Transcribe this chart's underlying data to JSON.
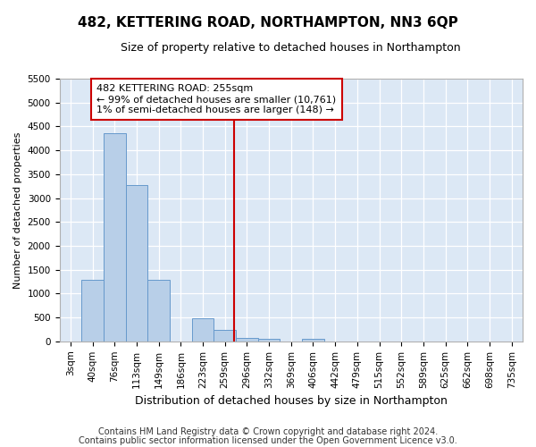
{
  "title": "482, KETTERING ROAD, NORTHAMPTON, NN3 6QP",
  "subtitle": "Size of property relative to detached houses in Northampton",
  "xlabel": "Distribution of detached houses by size in Northampton",
  "ylabel": "Number of detached properties",
  "footnote1": "Contains HM Land Registry data © Crown copyright and database right 2024.",
  "footnote2": "Contains public sector information licensed under the Open Government Licence v3.0.",
  "annotation_title": "482 KETTERING ROAD: 255sqm",
  "annotation_line1": "← 99% of detached houses are smaller (10,761)",
  "annotation_line2": "1% of semi-detached houses are larger (148) →",
  "bar_labels": [
    "3sqm",
    "40sqm",
    "76sqm",
    "113sqm",
    "149sqm",
    "186sqm",
    "223sqm",
    "259sqm",
    "296sqm",
    "332sqm",
    "369sqm",
    "406sqm",
    "442sqm",
    "479sqm",
    "515sqm",
    "552sqm",
    "589sqm",
    "625sqm",
    "662sqm",
    "698sqm",
    "735sqm"
  ],
  "bar_values": [
    0,
    1280,
    4350,
    3270,
    1280,
    0,
    480,
    240,
    80,
    60,
    0,
    45,
    0,
    0,
    0,
    0,
    0,
    0,
    0,
    0,
    0
  ],
  "bar_color": "#b8cfe8",
  "bar_edge_color": "#6699cc",
  "vline_color": "#cc0000",
  "vline_x_index": 7,
  "annotation_box_color": "#cc0000",
  "fig_background": "#ffffff",
  "plot_background": "#dce8f5",
  "ylim": [
    0,
    5500
  ],
  "yticks": [
    0,
    500,
    1000,
    1500,
    2000,
    2500,
    3000,
    3500,
    4000,
    4500,
    5000,
    5500
  ],
  "title_fontsize": 11,
  "subtitle_fontsize": 9,
  "xlabel_fontsize": 9,
  "ylabel_fontsize": 8,
  "tick_fontsize": 7.5,
  "footnote_fontsize": 7
}
